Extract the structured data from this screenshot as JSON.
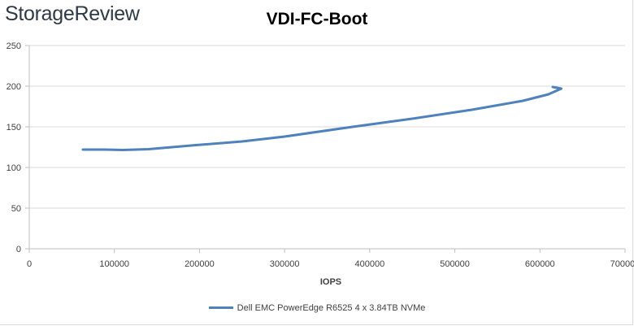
{
  "header": {
    "logo_text": "StorageReview"
  },
  "chart_data": {
    "type": "line",
    "title": "VDI-FC-Boot",
    "xlabel": "IOPS",
    "ylabel": "",
    "xlim": [
      0,
      700000
    ],
    "ylim": [
      0,
      250
    ],
    "x_ticks": [
      "0",
      "100000",
      "200000",
      "300000",
      "400000",
      "500000",
      "600000",
      "700000"
    ],
    "y_ticks": [
      "0",
      "50",
      "100",
      "150",
      "200",
      "250"
    ],
    "grid": "horizontal",
    "legend_position": "bottom",
    "series": [
      {
        "name": "Dell EMC PowerEdge R6525 4 x 3.84TB NVMe",
        "color": "#4f81bd",
        "x": [
          63000,
          90000,
          110000,
          140000,
          190000,
          250000,
          300000,
          380000,
          450000,
          520000,
          580000,
          610000,
          625000,
          615000
        ],
        "y": [
          122,
          122,
          121.5,
          122.5,
          127,
          132,
          138,
          150,
          160,
          171,
          182,
          190,
          197,
          199
        ]
      }
    ]
  }
}
